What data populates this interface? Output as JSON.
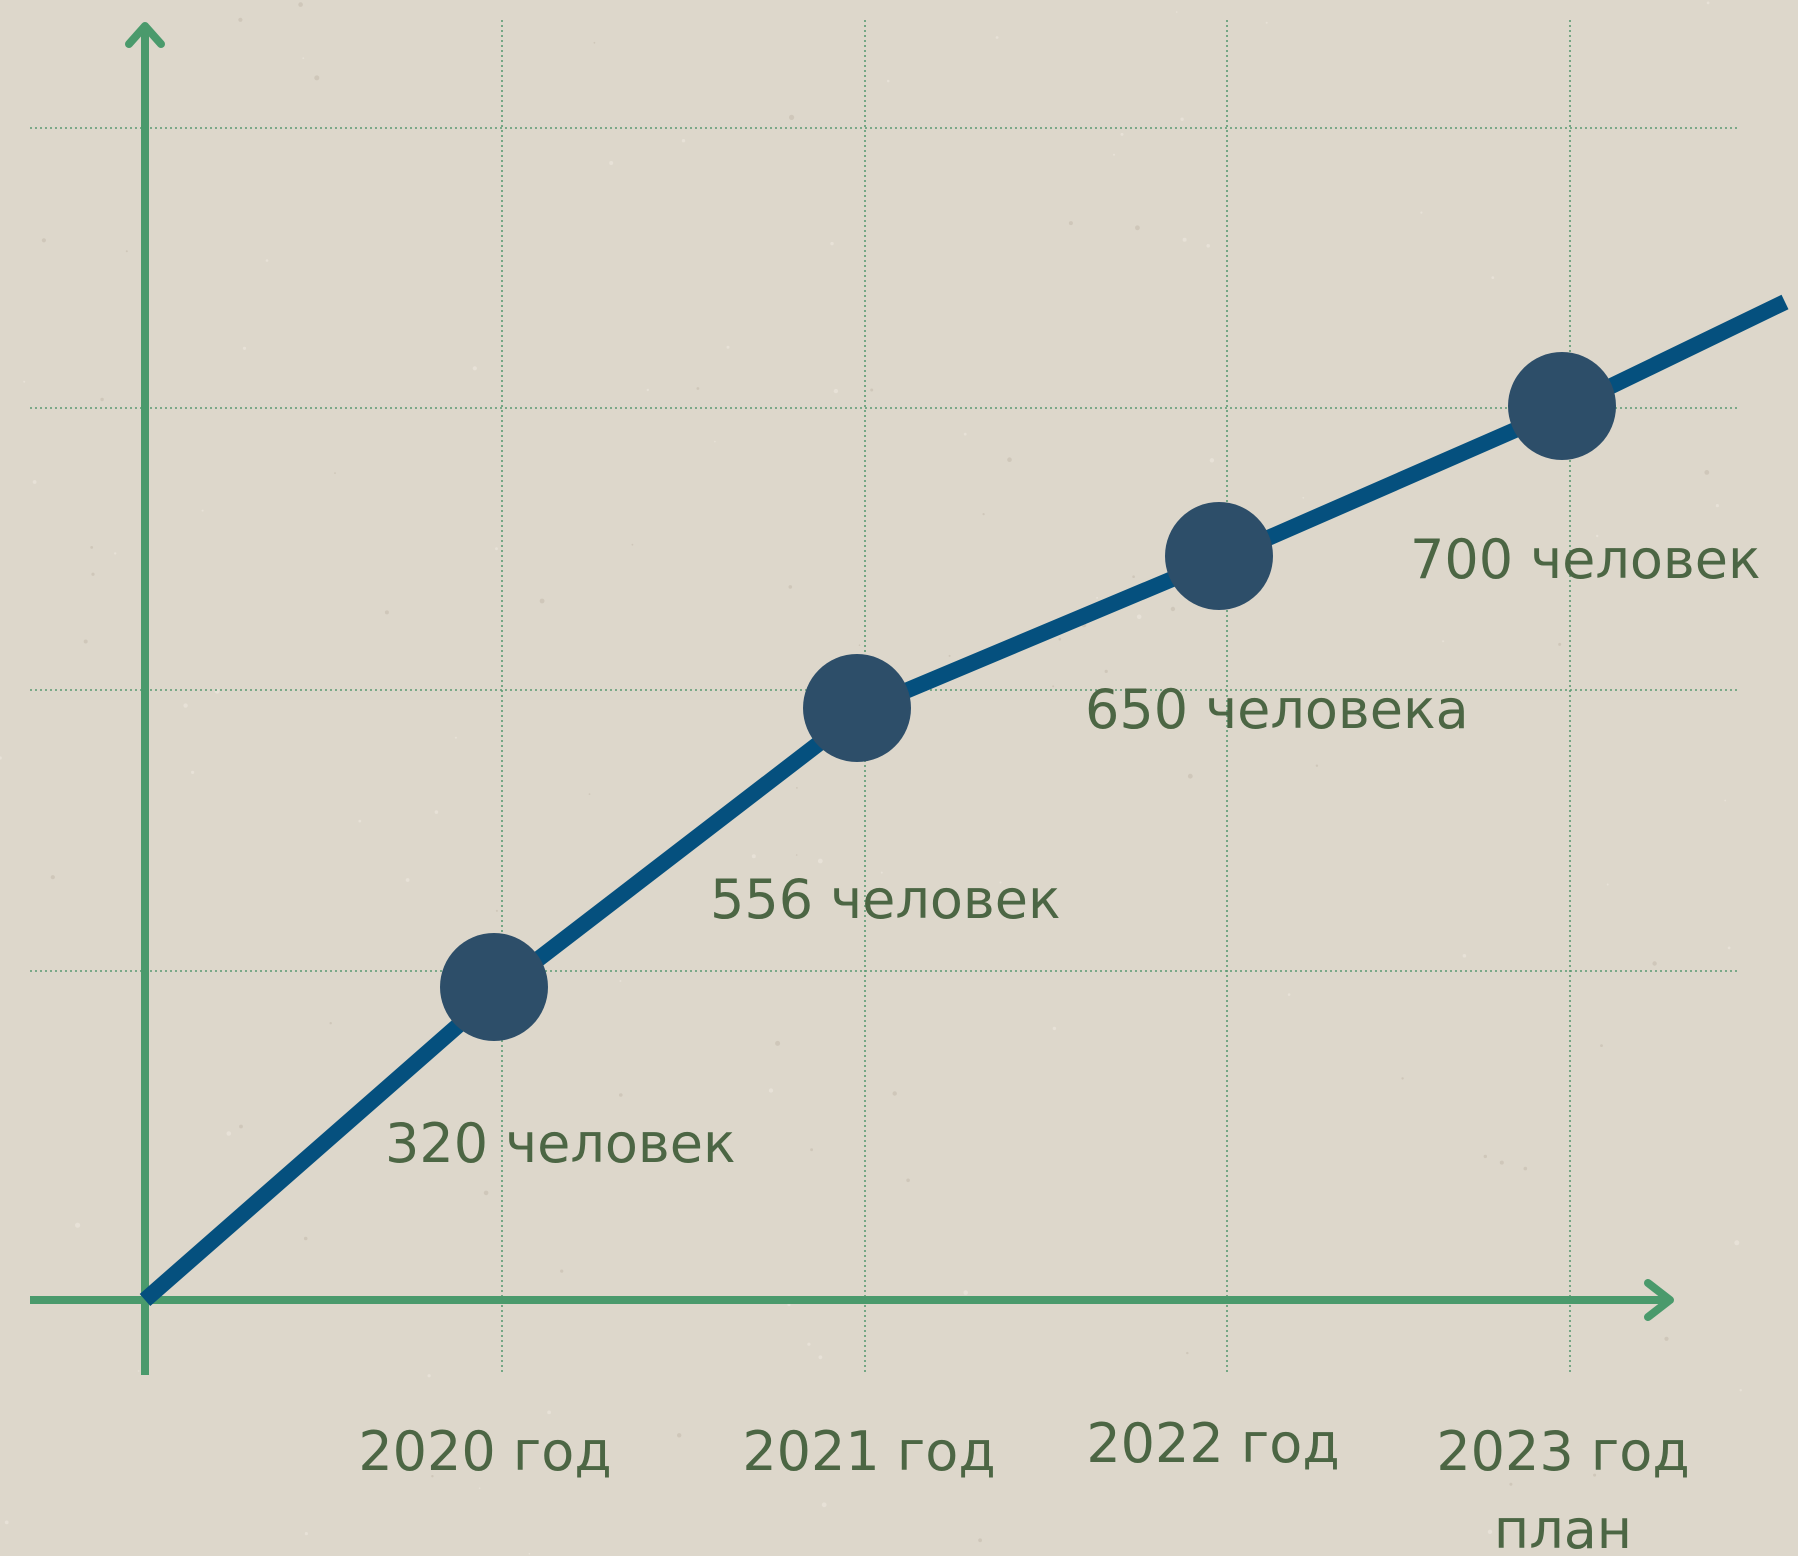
{
  "chart_data": {
    "type": "line",
    "x": [
      "2020 год",
      "2021 год",
      "2022 год",
      "2023 год план"
    ],
    "categories_display": [
      [
        "2020 год"
      ],
      [
        "2021 год"
      ],
      [
        "2022 год"
      ],
      [
        "2023 год",
        "план"
      ]
    ],
    "values": [
      320,
      556,
      650,
      700
    ],
    "data_labels": [
      "320 человек",
      "556 человек",
      "650 человека",
      "700 человек"
    ],
    "grid": true,
    "colors": {
      "background": "#ddd7cb",
      "axis": "#4a9a6c",
      "grid": "#5a9a72",
      "line": "#05507e",
      "marker": "#2d4e69",
      "text": "#4c6644"
    }
  }
}
